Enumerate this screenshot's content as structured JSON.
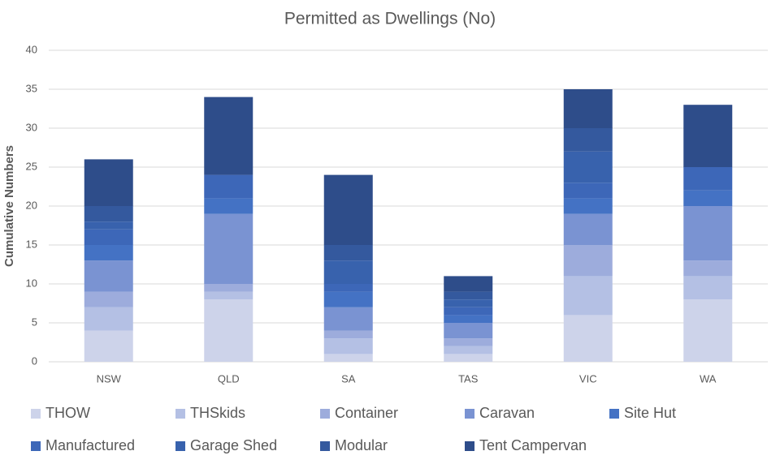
{
  "chart_data": {
    "type": "stacked_bar",
    "title": "Permitted as Dwellings (No)",
    "y_label": "Cumulative Numbers",
    "categories": [
      "NSW",
      "QLD",
      "SA",
      "TAS",
      "VIC",
      "WA"
    ],
    "series": [
      {
        "name": "THOW",
        "color": "#cdd3ea",
        "values": [
          4,
          8,
          1,
          1,
          6,
          8
        ]
      },
      {
        "name": "THSkids",
        "color": "#b4c0e4",
        "values": [
          3,
          1,
          2,
          1,
          5,
          3
        ]
      },
      {
        "name": "Container",
        "color": "#9dacdc",
        "values": [
          2,
          1,
          1,
          1,
          4,
          2
        ]
      },
      {
        "name": "Caravan",
        "color": "#7a93d2",
        "values": [
          4,
          9,
          3,
          2,
          4,
          7
        ]
      },
      {
        "name": "Site Hut",
        "color": "#4472c4",
        "values": [
          2,
          2,
          2,
          1,
          2,
          2
        ]
      },
      {
        "name": "Manufactured",
        "color": "#3d67b8",
        "values": [
          2,
          3,
          1,
          1,
          2,
          3
        ]
      },
      {
        "name": "Garage Shed",
        "color": "#3862ad",
        "values": [
          1,
          0,
          3,
          1,
          4,
          0
        ]
      },
      {
        "name": "Modular",
        "color": "#34599e",
        "values": [
          2,
          0,
          2,
          1,
          3,
          0
        ]
      },
      {
        "name": "Tent Campervan",
        "color": "#2e4d8a",
        "values": [
          6,
          10,
          9,
          2,
          5,
          8
        ]
      }
    ],
    "ylim": [
      0,
      40
    ],
    "yticks": [
      0,
      5,
      10,
      15,
      20,
      25,
      30,
      35,
      40
    ],
    "grid": true
  }
}
